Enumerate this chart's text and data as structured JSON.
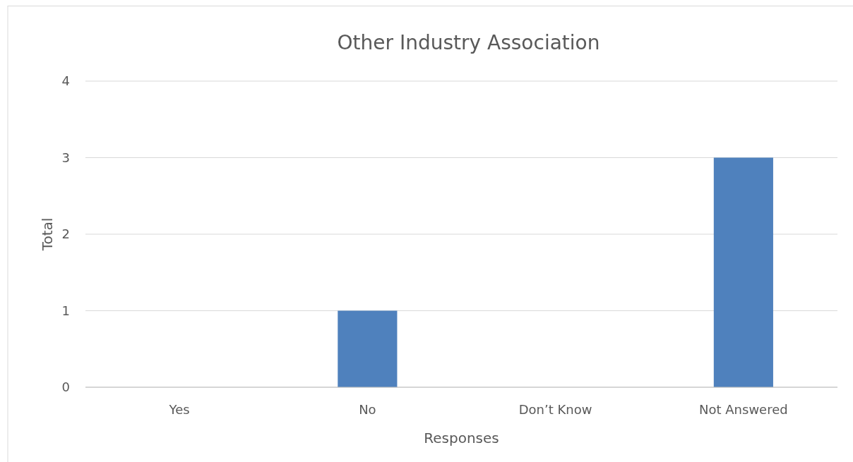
{
  "chart_data": {
    "type": "bar",
    "title": "Other Industry Association",
    "xlabel": "Responses",
    "ylabel": "Total",
    "categories": [
      "Yes",
      "No",
      "Don’t Know",
      "Not Answered"
    ],
    "values": [
      0,
      1,
      0,
      3
    ],
    "color": "#4f81bd",
    "ylim": [
      0,
      4
    ],
    "yticks": [
      0,
      1,
      2,
      3,
      4
    ],
    "grid": "y"
  }
}
